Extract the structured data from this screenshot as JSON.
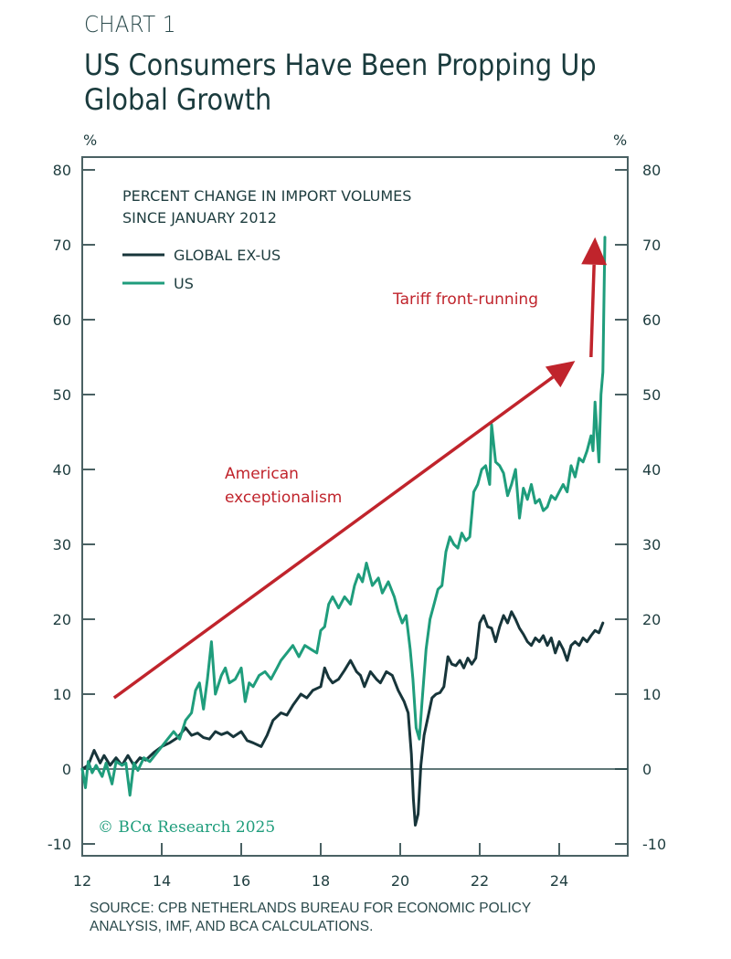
{
  "header": {
    "chart_label": "CHART 1",
    "title": "US Consumers Have Been Propping Up Global Growth"
  },
  "footer": {
    "source_line1": "SOURCE: CPB NETHERLANDS BUREAU FOR ECONOMIC POLICY",
    "source_line2": "ANALYSIS, IMF, AND BCA CALCULATIONS."
  },
  "watermark": "© BCα Research 2025",
  "colors": {
    "global_ex_us": "#17353a",
    "us": "#1f9d7c",
    "annotation": "#c0242c",
    "axis": "#4a6163"
  },
  "chart_data": {
    "type": "line",
    "title": "PERCENT CHANGE IN IMPORT VOLUMES",
    "subtitle": "SINCE JANUARY 2012",
    "xlabel": "",
    "ylabel_left": "%",
    "ylabel_right": "%",
    "xlim": [
      2012,
      2025.6
    ],
    "ylim": [
      -12,
      82
    ],
    "x_ticks": [
      2012,
      2014,
      2016,
      2018,
      2020,
      2022,
      2024
    ],
    "x_tick_labels": [
      "12",
      "14",
      "16",
      "18",
      "20",
      "22",
      "24"
    ],
    "y_ticks": [
      -10,
      0,
      10,
      20,
      30,
      40,
      50,
      60,
      70,
      80
    ],
    "y_tick_labels": [
      "-10",
      "0",
      "10",
      "20",
      "30",
      "40",
      "50",
      "60",
      "70",
      "80"
    ],
    "zero_line": true,
    "grid": false,
    "legend_position": "top-left",
    "series": [
      {
        "name": "GLOBAL EX-US",
        "color": "#17353a",
        "x": [
          2012.0,
          2012.15,
          2012.3,
          2012.45,
          2012.55,
          2012.7,
          2012.85,
          2013.0,
          2013.15,
          2013.3,
          2013.45,
          2013.6,
          2013.8,
          2014.0,
          2014.2,
          2014.4,
          2014.6,
          2014.75,
          2014.9,
          2015.05,
          2015.2,
          2015.35,
          2015.5,
          2015.65,
          2015.8,
          2016.0,
          2016.15,
          2016.3,
          2016.5,
          2016.65,
          2016.8,
          2017.0,
          2017.15,
          2017.3,
          2017.5,
          2017.65,
          2017.8,
          2018.0,
          2018.1,
          2018.2,
          2018.3,
          2018.45,
          2018.6,
          2018.75,
          2018.9,
          2019.0,
          2019.1,
          2019.25,
          2019.4,
          2019.5,
          2019.65,
          2019.8,
          2019.95,
          2020.1,
          2020.2,
          2020.28,
          2020.33,
          2020.38,
          2020.45,
          2020.52,
          2020.6,
          2020.7,
          2020.8,
          2020.9,
          2021.0,
          2021.1,
          2021.2,
          2021.3,
          2021.4,
          2021.5,
          2021.6,
          2021.7,
          2021.8,
          2021.9,
          2022.0,
          2022.1,
          2022.2,
          2022.3,
          2022.4,
          2022.5,
          2022.6,
          2022.7,
          2022.8,
          2022.9,
          2023.0,
          2023.1,
          2023.2,
          2023.3,
          2023.4,
          2023.5,
          2023.6,
          2023.7,
          2023.8,
          2023.9,
          2024.0,
          2024.1,
          2024.2,
          2024.3,
          2024.4,
          2024.5,
          2024.6,
          2024.7,
          2024.8,
          2024.9,
          2025.0,
          2025.1
        ],
        "values": [
          0,
          0.5,
          2.5,
          0.8,
          1.8,
          0.5,
          1.5,
          0.5,
          1.8,
          0.5,
          1.5,
          1.2,
          2.2,
          3.0,
          3.5,
          4.2,
          5.5,
          4.5,
          4.8,
          4.2,
          4.0,
          5.0,
          4.6,
          4.9,
          4.3,
          5.0,
          3.8,
          3.5,
          3.0,
          4.5,
          6.5,
          7.5,
          7.2,
          8.5,
          10.0,
          9.5,
          10.5,
          11.0,
          13.5,
          12.2,
          11.5,
          12.0,
          13.2,
          14.5,
          13.0,
          12.5,
          11.0,
          13.0,
          12.0,
          11.5,
          13.0,
          12.5,
          10.5,
          9.0,
          7.5,
          2.0,
          -4.0,
          -7.5,
          -6.0,
          0.5,
          4.5,
          7.0,
          9.5,
          10.0,
          10.2,
          11.0,
          15.0,
          14.0,
          13.8,
          14.5,
          13.5,
          14.8,
          14.0,
          14.8,
          19.5,
          20.5,
          19.0,
          18.8,
          17.0,
          19.0,
          20.5,
          19.5,
          21.0,
          20.0,
          18.8,
          18.0,
          17.0,
          16.5,
          17.5,
          17.0,
          17.8,
          16.5,
          17.5,
          15.5,
          17.0,
          16.0,
          14.5,
          16.5,
          17.0,
          16.5,
          17.5,
          17.0,
          17.8,
          18.5,
          18.2,
          19.5
        ]
      },
      {
        "name": "US",
        "color": "#1f9d7c",
        "x": [
          2012.0,
          2012.08,
          2012.15,
          2012.25,
          2012.35,
          2012.5,
          2012.6,
          2012.75,
          2012.85,
          2013.0,
          2013.1,
          2013.2,
          2013.3,
          2013.4,
          2013.55,
          2013.7,
          2013.85,
          2014.0,
          2014.15,
          2014.3,
          2014.45,
          2014.6,
          2014.75,
          2014.85,
          2014.95,
          2015.05,
          2015.15,
          2015.25,
          2015.35,
          2015.5,
          2015.6,
          2015.7,
          2015.85,
          2016.0,
          2016.1,
          2016.2,
          2016.3,
          2016.45,
          2016.6,
          2016.75,
          2016.9,
          2017.0,
          2017.15,
          2017.3,
          2017.45,
          2017.6,
          2017.75,
          2017.9,
          2018.0,
          2018.1,
          2018.2,
          2018.3,
          2018.45,
          2018.6,
          2018.75,
          2018.85,
          2018.95,
          2019.05,
          2019.15,
          2019.3,
          2019.45,
          2019.55,
          2019.7,
          2019.85,
          2019.95,
          2020.05,
          2020.15,
          2020.25,
          2020.32,
          2020.4,
          2020.48,
          2020.55,
          2020.65,
          2020.75,
          2020.85,
          2020.95,
          2021.05,
          2021.15,
          2021.25,
          2021.35,
          2021.45,
          2021.55,
          2021.65,
          2021.75,
          2021.85,
          2021.95,
          2022.05,
          2022.15,
          2022.25,
          2022.3,
          2022.4,
          2022.5,
          2022.6,
          2022.7,
          2022.8,
          2022.9,
          2023.0,
          2023.1,
          2023.2,
          2023.3,
          2023.4,
          2023.5,
          2023.6,
          2023.7,
          2023.8,
          2023.9,
          2024.0,
          2024.1,
          2024.2,
          2024.3,
          2024.4,
          2024.5,
          2024.6,
          2024.7,
          2024.8,
          2024.85,
          2024.9,
          2024.95,
          2025.0,
          2025.05,
          2025.1,
          2025.15
        ],
        "values": [
          0,
          -2.5,
          1.0,
          -0.5,
          0.5,
          -1.0,
          0.8,
          -2.0,
          1.0,
          0.5,
          0.8,
          -3.5,
          0.8,
          -0.2,
          1.5,
          1.0,
          2.0,
          3.0,
          4.0,
          5.0,
          4.0,
          6.5,
          7.5,
          10.5,
          11.5,
          8.0,
          12.0,
          17.0,
          10.0,
          12.5,
          13.5,
          11.5,
          12.0,
          13.5,
          9.0,
          11.5,
          11.0,
          12.5,
          13.0,
          12.0,
          13.5,
          14.5,
          15.5,
          16.5,
          15.0,
          16.5,
          16.0,
          15.5,
          18.5,
          19.0,
          22.0,
          23.0,
          21.5,
          23.0,
          22.0,
          24.5,
          26.0,
          25.0,
          27.5,
          24.5,
          25.5,
          23.5,
          25.0,
          23.0,
          21.0,
          19.5,
          20.5,
          16.0,
          12.0,
          5.5,
          4.0,
          9.0,
          16.0,
          20.0,
          22.0,
          24.0,
          24.5,
          29.0,
          31.0,
          30.0,
          29.5,
          31.5,
          30.5,
          31.0,
          37.0,
          38.0,
          40.0,
          40.5,
          38.0,
          46.0,
          41.0,
          40.5,
          39.5,
          36.5,
          38.0,
          40.0,
          33.5,
          37.5,
          36.0,
          38.0,
          35.5,
          36.0,
          34.5,
          35.0,
          36.5,
          36.0,
          37.0,
          38.0,
          37.0,
          40.5,
          39.0,
          41.5,
          41.0,
          42.5,
          44.5,
          42.5,
          49.0,
          45.0,
          41.0,
          50.0,
          53.0,
          71.0
        ]
      }
    ],
    "annotations": [
      {
        "text": [
          "American",
          "exceptionalism"
        ],
        "color": "#c0242c",
        "arrow_from": [
          2012.8,
          9.5
        ],
        "arrow_to": [
          2024.4,
          54.5
        ]
      },
      {
        "text": [
          "Tariff front-running"
        ],
        "color": "#c0242c",
        "arrow_from": [
          2024.8,
          55.0
        ],
        "arrow_to": [
          2024.9,
          71.0
        ]
      }
    ]
  }
}
